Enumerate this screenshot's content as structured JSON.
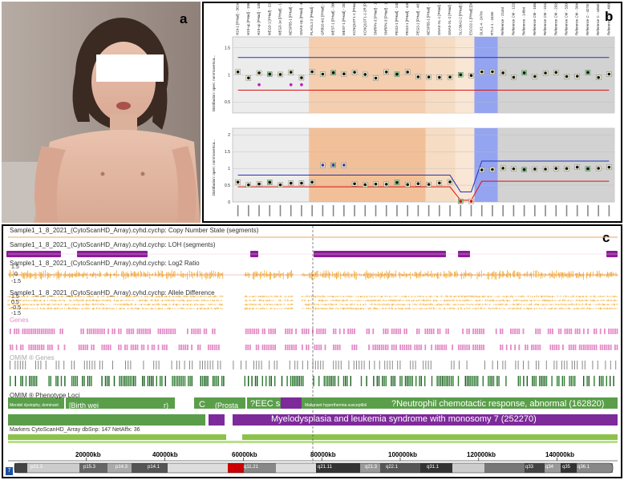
{
  "panels": {
    "a": "a",
    "b": "b",
    "c": "c"
  },
  "panel_b": {
    "ylabel_top": "Distribution: open: nonrmoveSca...",
    "ylabel_bottom": "Distribution: open: nonrmoveSca...",
    "yticks_top": [
      "1.5",
      "1",
      "0.5"
    ],
    "yticks_bottom": [
      "2",
      "1.5",
      "1",
      "0.5",
      "0"
    ],
    "probes": [
      "H19-1 [PHad] - 301nt",
      "H19-up [PHad] - 196nt",
      "H19-up [PHad] - 135nt",
      "MEG3-1 [PHad] - 220nt",
      "MEG3-1e [PHad] - 130nt",
      "NESP55-1 [PHad] - 264nt",
      "GNAS-Up [PHad] - 402nt",
      "PLAGL1-2 [PHad] - 157nt",
      "GRB10-In1 [PHad] - 152nt",
      "MEST-1 [PHad] - 300nt",
      "MEST-1 [PHad] - 202nt",
      "KCNQ1OT1-1 [PHad] - 219nt",
      "KCNQ1OT1-1-2R [PHad] - 393nt",
      "SNRPN-3 [PHad] - 178nt",
      "SNRPN-3 [PHad] - 142nt",
      "PEG3-1 [PHad] - 240nt",
      "PEG3-1 [PHad] - 436nt",
      "PEG3-1 [PHad] - 481nt",
      "NESP55-1 [PHad] - 398nt",
      "GNAS-XL-1 [PHad] - 454nt",
      "GNAS-XL-2 [PHad] - 317nt",
      "SLC38A2-2 [PHad] [Dig] - 208nt",
      "ESCO2-1 [PHad] [Dig] - 355nt",
      "DLK1-4 - 247nt",
      "RTL1-1 - 343nt",
      "Reference - 214nt",
      "Reference CM - 122nt",
      "Reference - 148nt",
      "Reference CM - 166nt",
      "Reference CM - 231nt",
      "Reference CM - 292nt",
      "Reference CM - 320nt",
      "Reference CM - 364nt",
      "Reference C - 427nt",
      "Reference C - 445nt",
      "Reference CM - 466nt"
    ]
  },
  "panel_c": {
    "tracks": [
      "Sample1_1_8_2021_(CytoScanHD_Array).cyhd.cychp: Copy Number State (segments)",
      "Sample1_1_8_2021_(CytoScanHD_Array).cyhd.cychp: LOH (segments)",
      "Sample1_1_8_2021_(CytoScanHD_Array).cyhd.cychp: Log2 Ratio",
      "Sample1_1_8_2021_(CytoScanHD_Array).cyhd.cychp: Allele Difference"
    ],
    "log2_ticks": [
      "1.5",
      "0",
      "-1.5"
    ],
    "allele_ticks": [
      "1.5",
      "0.5",
      "-0.5",
      "-1.5"
    ],
    "genes_label": "Genes",
    "omim_genes_label": "OMIM ® Genes",
    "omim_loci_label": "OMIM ® Phenotype Loci",
    "omim_entries": {
      "birth": "[Birth wei",
      "birth_end": "r)",
      "mendel": "Mendel dystophy, dominant",
      "c": "C",
      "prosta": "(Prosta",
      "eec": "?EEC s",
      "malignant": "Malignant hyperthermia susceptibil",
      "neutrophil": "?Neutrophil chemotactic response, abnormal (162820)",
      "myelo": "Myelodysplasia and leukemia syndrome with monosomy 7 (252270)"
    },
    "markers_label": "Markers CytoScanHD_Array dbSnp: 147 NetAffx: 36",
    "ruler": [
      "20000kb",
      "40000kb",
      "60000kb",
      "80000kb",
      "100000kb",
      "120000kb",
      "140000kb"
    ],
    "bands": [
      "p21.3",
      "p15.3",
      "p14.3",
      "p14.1",
      "q11.21",
      "q21.11",
      "q21.3",
      "q22.1",
      "q31.1",
      "q33",
      "q34",
      "q35",
      "q36.1"
    ],
    "chrom_label": "7"
  },
  "colors": {
    "lohPurple": "#8b1c99",
    "orange": "#f5a623",
    "pink": "#e58bc8",
    "green": "#2e7d32",
    "omimGreen": "#5a9e4a",
    "markerGreen": "#8bc34a",
    "purpleBar": "#7d2a9a"
  }
}
